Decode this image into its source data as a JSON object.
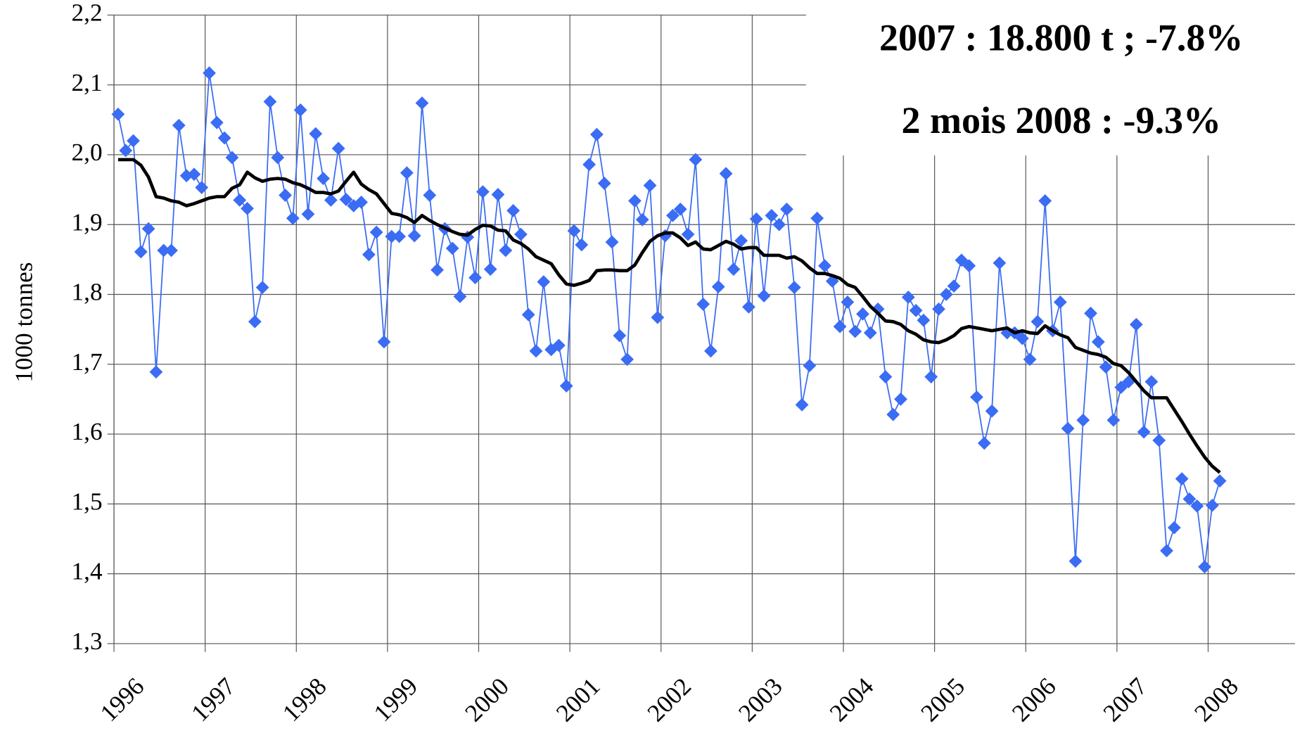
{
  "chart_data": {
    "type": "line",
    "ylabel": "1000 tonnes",
    "annotations": [
      "2007 : 18.800 t ; -7.8%",
      "2 mois 2008 :  -9.3%"
    ],
    "categories": [
      "1996",
      null,
      null,
      null,
      null,
      null,
      null,
      null,
      null,
      null,
      null,
      null,
      "1997",
      null,
      null,
      null,
      null,
      null,
      null,
      null,
      null,
      null,
      null,
      null,
      "1998",
      null,
      null,
      null,
      null,
      null,
      null,
      null,
      null,
      null,
      null,
      null,
      "1999",
      null,
      null,
      null,
      null,
      null,
      null,
      null,
      null,
      null,
      null,
      null,
      "2000",
      null,
      null,
      null,
      null,
      null,
      null,
      null,
      null,
      null,
      null,
      null,
      "2001",
      null,
      null,
      null,
      null,
      null,
      null,
      null,
      null,
      null,
      null,
      null,
      "2002",
      null,
      null,
      null,
      null,
      null,
      null,
      null,
      null,
      null,
      null,
      null,
      "2003",
      null,
      null,
      null,
      null,
      null,
      null,
      null,
      null,
      null,
      null,
      null,
      "2004",
      null,
      null,
      null,
      null,
      null,
      null,
      null,
      null,
      null,
      null,
      null,
      "2005",
      null,
      null,
      null,
      null,
      null,
      null,
      null,
      null,
      null,
      null,
      null,
      "2006",
      null,
      null,
      null,
      null,
      null,
      null,
      null,
      null,
      null,
      null,
      null,
      "2007",
      null,
      null,
      null,
      null,
      null,
      null,
      null,
      null,
      null,
      null,
      null,
      "2008",
      null
    ],
    "series": [
      {
        "color": "#3a6cf4",
        "marker": "diamond",
        "values": [
          2.058,
          2.006,
          2.02,
          1.861,
          1.894,
          1.689,
          1.863,
          1.863,
          2.042,
          1.97,
          1.972,
          1.953,
          2.117,
          2.046,
          2.024,
          1.996,
          1.935,
          1.923,
          1.761,
          1.81,
          2.076,
          1.996,
          1.942,
          1.909,
          2.064,
          1.915,
          2.03,
          1.966,
          1.935,
          2.009,
          1.936,
          1.927,
          1.932,
          1.857,
          1.889,
          1.732,
          1.883,
          1.883,
          1.974,
          1.884,
          2.074,
          1.942,
          1.835,
          1.894,
          1.866,
          1.797,
          1.882,
          1.824,
          1.947,
          1.836,
          1.943,
          1.863,
          1.92,
          1.886,
          1.771,
          1.719,
          1.818,
          1.721,
          1.727,
          1.669,
          1.891,
          1.871,
          1.986,
          2.029,
          1.959,
          1.875,
          1.741,
          1.707,
          1.934,
          1.907,
          1.956,
          1.767,
          1.884,
          1.913,
          1.922,
          1.886,
          1.993,
          1.786,
          1.719,
          1.811,
          1.973,
          1.836,
          1.877,
          1.782,
          1.908,
          1.798,
          1.913,
          1.9,
          1.922,
          1.81,
          1.642,
          1.698,
          1.909,
          1.841,
          1.819,
          1.754,
          1.789,
          1.747,
          1.772,
          1.745,
          1.779,
          1.682,
          1.628,
          1.65,
          1.796,
          1.777,
          1.763,
          1.682,
          1.779,
          1.8,
          1.812,
          1.849,
          1.841,
          1.653,
          1.587,
          1.633,
          1.845,
          1.745,
          1.745,
          1.737,
          1.707,
          1.761,
          1.934,
          1.748,
          1.789,
          1.608,
          1.418,
          1.62,
          1.773,
          1.732,
          1.696,
          1.62,
          1.667,
          1.675,
          1.757,
          1.603,
          1.675,
          1.591,
          1.433,
          1.466,
          1.536,
          1.507,
          1.497,
          1.41,
          1.498,
          1.533
        ]
      },
      {
        "color": "#000000",
        "marker": "none",
        "values": [
          1.993,
          1.993,
          1.993,
          1.985,
          1.968,
          1.94,
          1.938,
          1.934,
          1.932,
          1.927,
          1.93,
          1.934,
          1.938,
          1.94,
          1.94,
          1.952,
          1.957,
          1.975,
          1.967,
          1.962,
          1.965,
          1.966,
          1.965,
          1.96,
          1.957,
          1.952,
          1.946,
          1.946,
          1.944,
          1.948,
          1.962,
          1.975,
          1.958,
          1.95,
          1.944,
          1.93,
          1.916,
          1.914,
          1.91,
          1.903,
          1.913,
          1.906,
          1.9,
          1.895,
          1.89,
          1.886,
          1.885,
          1.893,
          1.899,
          1.898,
          1.892,
          1.891,
          1.878,
          1.873,
          1.865,
          1.854,
          1.849,
          1.844,
          1.828,
          1.815,
          1.813,
          1.816,
          1.82,
          1.834,
          1.835,
          1.835,
          1.834,
          1.834,
          1.842,
          1.86,
          1.876,
          1.884,
          1.888,
          1.888,
          1.881,
          1.87,
          1.875,
          1.865,
          1.864,
          1.87,
          1.876,
          1.872,
          1.865,
          1.867,
          1.867,
          1.856,
          1.856,
          1.856,
          1.852,
          1.854,
          1.848,
          1.838,
          1.83,
          1.83,
          1.827,
          1.823,
          1.814,
          1.81,
          1.797,
          1.783,
          1.773,
          1.762,
          1.761,
          1.757,
          1.748,
          1.743,
          1.735,
          1.732,
          1.731,
          1.735,
          1.741,
          1.751,
          1.754,
          1.752,
          1.75,
          1.748,
          1.75,
          1.752,
          1.745,
          1.748,
          1.745,
          1.744,
          1.755,
          1.748,
          1.742,
          1.738,
          1.724,
          1.72,
          1.716,
          1.714,
          1.71,
          1.701,
          1.698,
          1.688,
          1.675,
          1.662,
          1.652,
          1.652,
          1.652,
          1.635,
          1.618,
          1.6,
          1.583,
          1.567,
          1.554,
          1.545
        ]
      }
    ],
    "ylim": [
      1.3,
      2.2
    ],
    "yticks": [
      {
        "value": 1.3,
        "label": "1,3"
      },
      {
        "value": 1.4,
        "label": "1,4"
      },
      {
        "value": 1.5,
        "label": "1,5"
      },
      {
        "value": 1.6,
        "label": "1,6"
      },
      {
        "value": 1.7,
        "label": "1,7"
      },
      {
        "value": 1.8,
        "label": "1,8"
      },
      {
        "value": 1.9,
        "label": "1,9"
      },
      {
        "value": 2.0,
        "label": "2,0"
      },
      {
        "value": 2.1,
        "label": "2,1"
      },
      {
        "value": 2.2,
        "label": "2,2"
      }
    ],
    "grid": true,
    "annotation_color": "#cc3300"
  }
}
